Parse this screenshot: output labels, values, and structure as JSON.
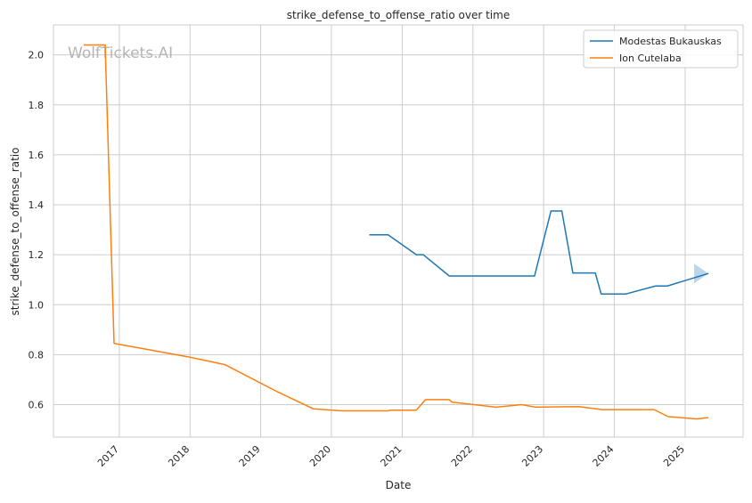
{
  "chart_data": {
    "type": "line",
    "title": "strike_defense_to_offense_ratio over time",
    "xlabel": "Date",
    "ylabel": "strike_defense_to_offense_ratio",
    "watermark": "WolfTickets.AI",
    "x_ticks": [
      "2017",
      "2018",
      "2019",
      "2020",
      "2021",
      "2022",
      "2023",
      "2024",
      "2025"
    ],
    "y_ticks": [
      "0.6",
      "0.8",
      "1.0",
      "1.2",
      "1.4",
      "1.6",
      "1.8",
      "2.0"
    ],
    "ylim": [
      0.47,
      2.12
    ],
    "xlim": [
      "2016-01-27",
      "2025-10-27"
    ],
    "grid": true,
    "legend_position": "top-right",
    "series": [
      {
        "name": "Modestas Bukauskas",
        "color": "#1f77b4",
        "points": [
          [
            "2020-07-15",
            1.28
          ],
          [
            "2020-10-20",
            1.28
          ],
          [
            "2021-03-15",
            1.2
          ],
          [
            "2021-04-20",
            1.2
          ],
          [
            "2021-09-01",
            1.115
          ],
          [
            "2022-11-15",
            1.115
          ],
          [
            "2023-02-08",
            1.375
          ],
          [
            "2023-04-05",
            1.375
          ],
          [
            "2023-06-01",
            1.127
          ],
          [
            "2023-09-25",
            1.127
          ],
          [
            "2023-10-25",
            1.043
          ],
          [
            "2024-03-01",
            1.043
          ],
          [
            "2024-08-01",
            1.075
          ],
          [
            "2024-10-01",
            1.075
          ],
          [
            "2025-05-01",
            1.125
          ]
        ]
      },
      {
        "name": "Ion Cutelaba",
        "color": "#ff7f0e",
        "points": [
          [
            "2016-07-01",
            2.04
          ],
          [
            "2016-10-01",
            2.04
          ],
          [
            "2016-10-20",
            2.04
          ],
          [
            "2016-12-05",
            0.845
          ],
          [
            "2017-06-01",
            0.82
          ],
          [
            "2018-01-01",
            0.79
          ],
          [
            "2018-07-01",
            0.76
          ],
          [
            "2019-04-01",
            0.65
          ],
          [
            "2019-10-01",
            0.583
          ],
          [
            "2020-03-01",
            0.575
          ],
          [
            "2020-10-20",
            0.575
          ],
          [
            "2020-11-01",
            0.578
          ],
          [
            "2021-03-15",
            0.578
          ],
          [
            "2021-05-01",
            0.62
          ],
          [
            "2021-09-01",
            0.62
          ],
          [
            "2021-09-15",
            0.61
          ],
          [
            "2022-05-01",
            0.59
          ],
          [
            "2022-09-10",
            0.6
          ],
          [
            "2022-11-20",
            0.59
          ],
          [
            "2023-07-01",
            0.592
          ],
          [
            "2023-11-01",
            0.58
          ],
          [
            "2024-07-25",
            0.58
          ],
          [
            "2024-10-05",
            0.552
          ],
          [
            "2025-03-01",
            0.543
          ],
          [
            "2025-05-01",
            0.548
          ]
        ]
      }
    ]
  }
}
